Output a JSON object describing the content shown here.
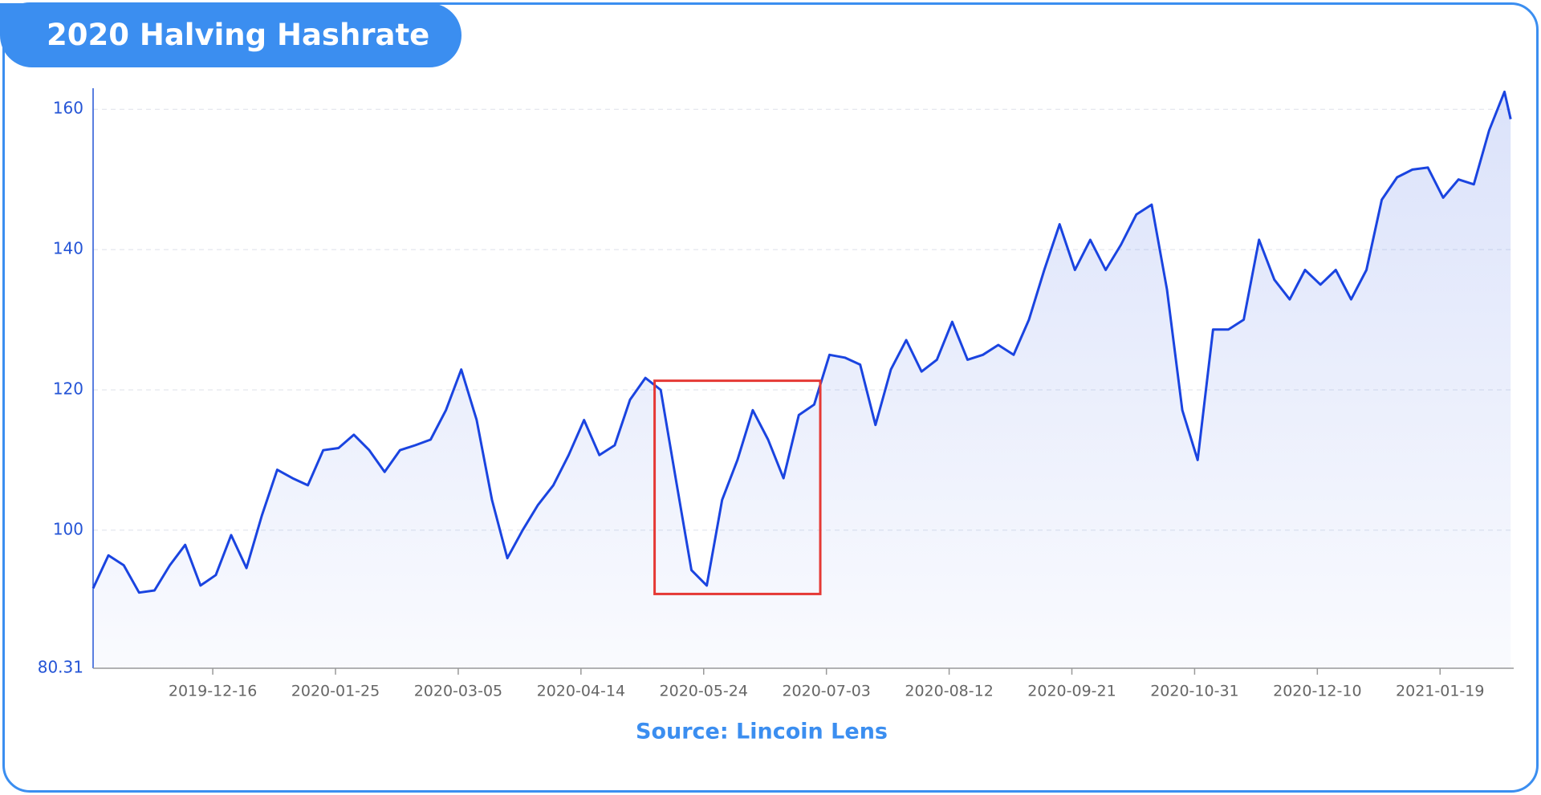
{
  "chart_data": {
    "type": "line",
    "title": "2020 Halving Hashrate",
    "source": "Source: Lincoin Lens",
    "x": [
      "2019-11-07",
      "2019-11-12",
      "2019-11-17",
      "2019-11-22",
      "2019-11-27",
      "2019-12-02",
      "2019-12-07",
      "2019-12-12",
      "2019-12-17",
      "2019-12-22",
      "2019-12-27",
      "2020-01-01",
      "2020-01-06",
      "2020-01-11",
      "2020-01-16",
      "2020-01-21",
      "2020-01-26",
      "2020-01-31",
      "2020-02-05",
      "2020-02-10",
      "2020-02-15",
      "2020-02-20",
      "2020-02-25",
      "2020-03-01",
      "2020-03-06",
      "2020-03-11",
      "2020-03-16",
      "2020-03-21",
      "2020-03-26",
      "2020-03-31",
      "2020-04-05",
      "2020-04-10",
      "2020-04-15",
      "2020-04-20",
      "2020-04-25",
      "2020-04-30",
      "2020-05-05",
      "2020-05-10",
      "2020-05-15",
      "2020-05-20",
      "2020-05-25",
      "2020-05-30",
      "2020-06-04",
      "2020-06-09",
      "2020-06-14",
      "2020-06-19",
      "2020-06-24",
      "2020-06-29",
      "2020-07-04",
      "2020-07-09",
      "2020-07-14",
      "2020-07-19",
      "2020-07-24",
      "2020-07-29",
      "2020-08-03",
      "2020-08-08",
      "2020-08-13",
      "2020-08-18",
      "2020-08-23",
      "2020-08-28",
      "2020-09-02",
      "2020-09-07",
      "2020-09-12",
      "2020-09-17",
      "2020-09-22",
      "2020-09-27",
      "2020-10-02",
      "2020-10-07",
      "2020-10-12",
      "2020-10-17",
      "2020-10-22",
      "2020-10-27",
      "2020-11-01",
      "2020-11-06",
      "2020-11-11",
      "2020-11-16",
      "2020-11-21",
      "2020-11-26",
      "2020-12-01",
      "2020-12-06",
      "2020-12-11",
      "2020-12-16",
      "2020-12-21",
      "2020-12-26",
      "2020-12-31",
      "2021-01-05",
      "2021-01-10",
      "2021-01-15",
      "2021-01-20",
      "2021-01-25",
      "2021-01-30",
      "2021-02-04",
      "2021-02-09",
      "2021-02-11"
    ],
    "values": [
      91.7,
      96.4,
      95,
      91.1,
      91.4,
      95,
      97.9,
      92.1,
      93.6,
      99.3,
      94.6,
      102.1,
      108.6,
      107.4,
      106.4,
      111.4,
      111.7,
      113.6,
      111.4,
      108.3,
      111.4,
      112.1,
      112.9,
      117.1,
      122.9,
      115.7,
      104.3,
      96,
      100,
      103.6,
      106.4,
      110.7,
      115.7,
      110.7,
      112.1,
      118.6,
      121.7,
      120,
      107.1,
      94.3,
      92.1,
      104.3,
      110,
      117.1,
      112.9,
      107.4,
      116.4,
      117.9,
      125,
      124.6,
      123.6,
      115,
      122.9,
      127.1,
      122.6,
      124.3,
      129.7,
      124.3,
      125,
      126.4,
      125,
      130,
      137.1,
      143.6,
      137.1,
      141.4,
      137.1,
      140.7,
      145,
      146.4,
      134.3,
      117.1,
      110,
      128.6,
      128.6,
      130,
      141.4,
      135.7,
      132.9,
      137.1,
      135,
      137.1,
      132.9,
      137.1,
      147.1,
      150.3,
      151.4,
      151.7,
      147.4,
      150,
      149.3,
      157,
      162.5,
      158.6
    ],
    "color": "#1a44e0",
    "xlim": [
      "2019-11-07",
      "2021-02-12"
    ],
    "xticks": [
      "2019-12-16",
      "2020-01-25",
      "2020-03-05",
      "2020-04-14",
      "2020-05-24",
      "2020-07-03",
      "2020-08-12",
      "2020-09-21",
      "2020-10-31",
      "2020-12-10",
      "2021-01-19"
    ],
    "ylim": [
      80.31,
      163
    ],
    "yticks": [
      80.31,
      100,
      120,
      140,
      160
    ],
    "grid": true,
    "highlight": {
      "x": [
        "2020-05-08",
        "2020-07-01"
      ],
      "y": [
        90.9,
        121.3
      ],
      "color": "#e53935"
    }
  }
}
